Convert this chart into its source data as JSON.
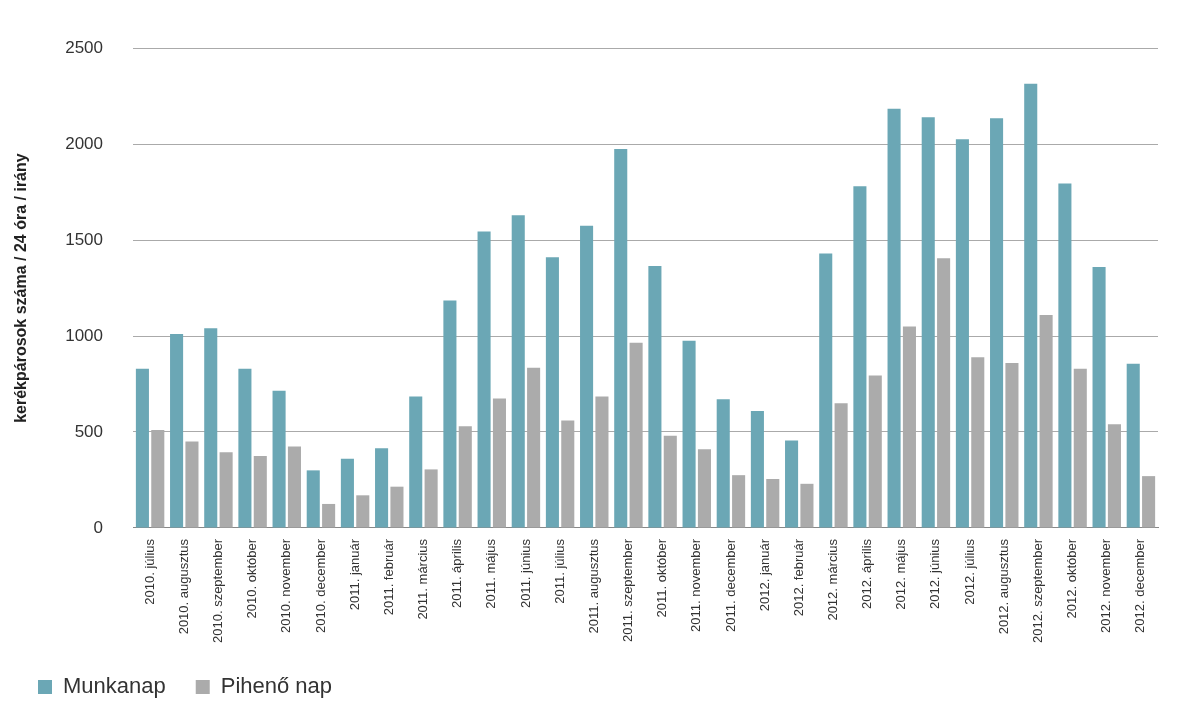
{
  "chart_data": {
    "type": "bar",
    "ylabel": "kerékpárosok száma / 24 óra / irány",
    "categories": [
      "2010. július",
      "2010. augusztus",
      "2010. szeptember",
      "2010. október",
      "2010. november",
      "2010. december",
      "2011. január",
      "2011. február",
      "2011. március",
      "2011. április",
      "2011. május",
      "2011. június",
      "2011. július",
      "2011. augusztus",
      "2011. szeptember",
      "2011. október",
      "2011. november",
      "2011. december",
      "2012. január",
      "2012. február",
      "2012. március",
      "2012. április",
      "2012. május",
      "2012. június",
      "2012. július",
      "2012. augusztus",
      "2012. szeptember",
      "2012. október",
      "2012. november",
      "2012. december"
    ],
    "series": [
      {
        "name": "Munkanap",
        "color": "#6ba7b5",
        "values": [
          830,
          1010,
          1040,
          830,
          715,
          300,
          360,
          415,
          685,
          1185,
          1545,
          1630,
          1410,
          1575,
          1975,
          1365,
          975,
          670,
          610,
          455,
          1430,
          1780,
          2185,
          2140,
          2025,
          2135,
          2315,
          1795,
          1360,
          855
        ]
      },
      {
        "name": "Pihenő nap",
        "color": "#ababab",
        "values": [
          510,
          450,
          395,
          375,
          425,
          125,
          170,
          215,
          305,
          530,
          675,
          835,
          560,
          685,
          965,
          480,
          410,
          275,
          255,
          230,
          650,
          795,
          1050,
          1405,
          890,
          860,
          1110,
          830,
          540,
          270
        ]
      }
    ],
    "ylim": [
      0,
      2500
    ],
    "yticks": [
      0,
      500,
      1000,
      1500,
      2000,
      2500
    ],
    "grid": "y",
    "legend": "bottom"
  }
}
